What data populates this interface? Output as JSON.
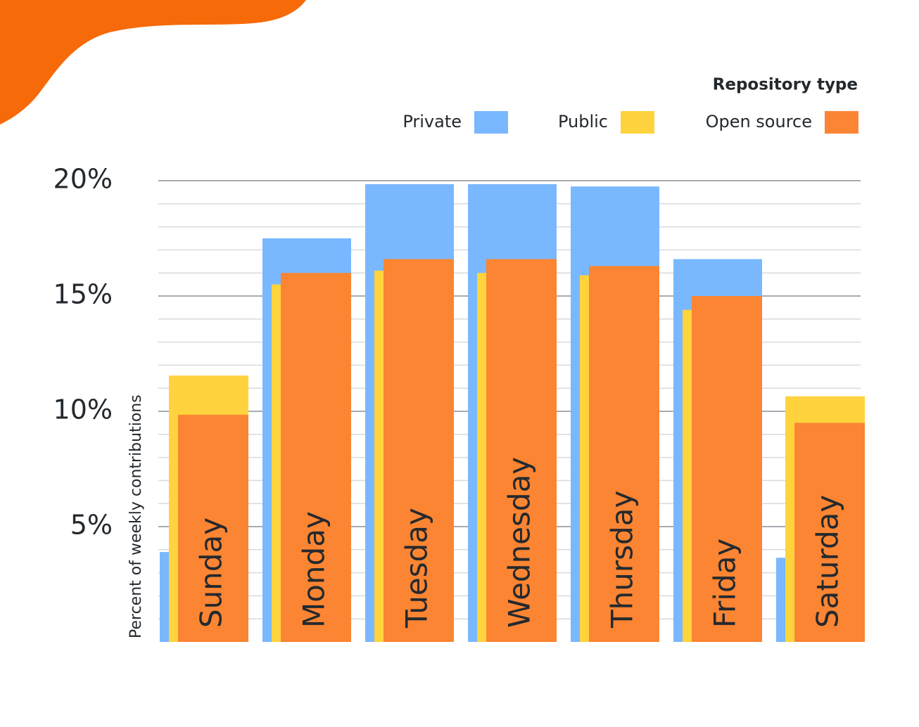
{
  "chart_data": {
    "type": "bar",
    "y_axis_label": "Percent of weekly contributions",
    "legend_title": "Repository type",
    "legend_position": "top-right",
    "categories": [
      "Sunday",
      "Monday",
      "Tuesday",
      "Wednesday",
      "Thursday",
      "Friday",
      "Saturday"
    ],
    "series": [
      {
        "name": "Private",
        "color": "#79b8ff",
        "values": [
          3.9,
          17.5,
          19.85,
          19.85,
          19.75,
          16.6,
          3.65
        ]
      },
      {
        "name": "Public",
        "color": "#ffd33d",
        "values": [
          11.55,
          15.5,
          16.1,
          16.0,
          15.9,
          14.4,
          10.65
        ]
      },
      {
        "name": "Open source",
        "color": "#fb8532",
        "values": [
          9.85,
          16.0,
          16.6,
          16.6,
          16.3,
          15.0,
          9.5
        ]
      }
    ],
    "ylim": [
      0,
      20
    ],
    "yticks": [
      {
        "value": 5,
        "label": "5%"
      },
      {
        "value": 10,
        "label": "10%"
      },
      {
        "value": 15,
        "label": "15%"
      },
      {
        "value": 20,
        "label": "20%"
      }
    ],
    "y_minor_ticks": [
      1,
      2,
      3,
      4,
      6,
      7,
      8,
      9,
      11,
      12,
      13,
      14,
      16,
      17,
      18,
      19
    ],
    "grid": true
  }
}
